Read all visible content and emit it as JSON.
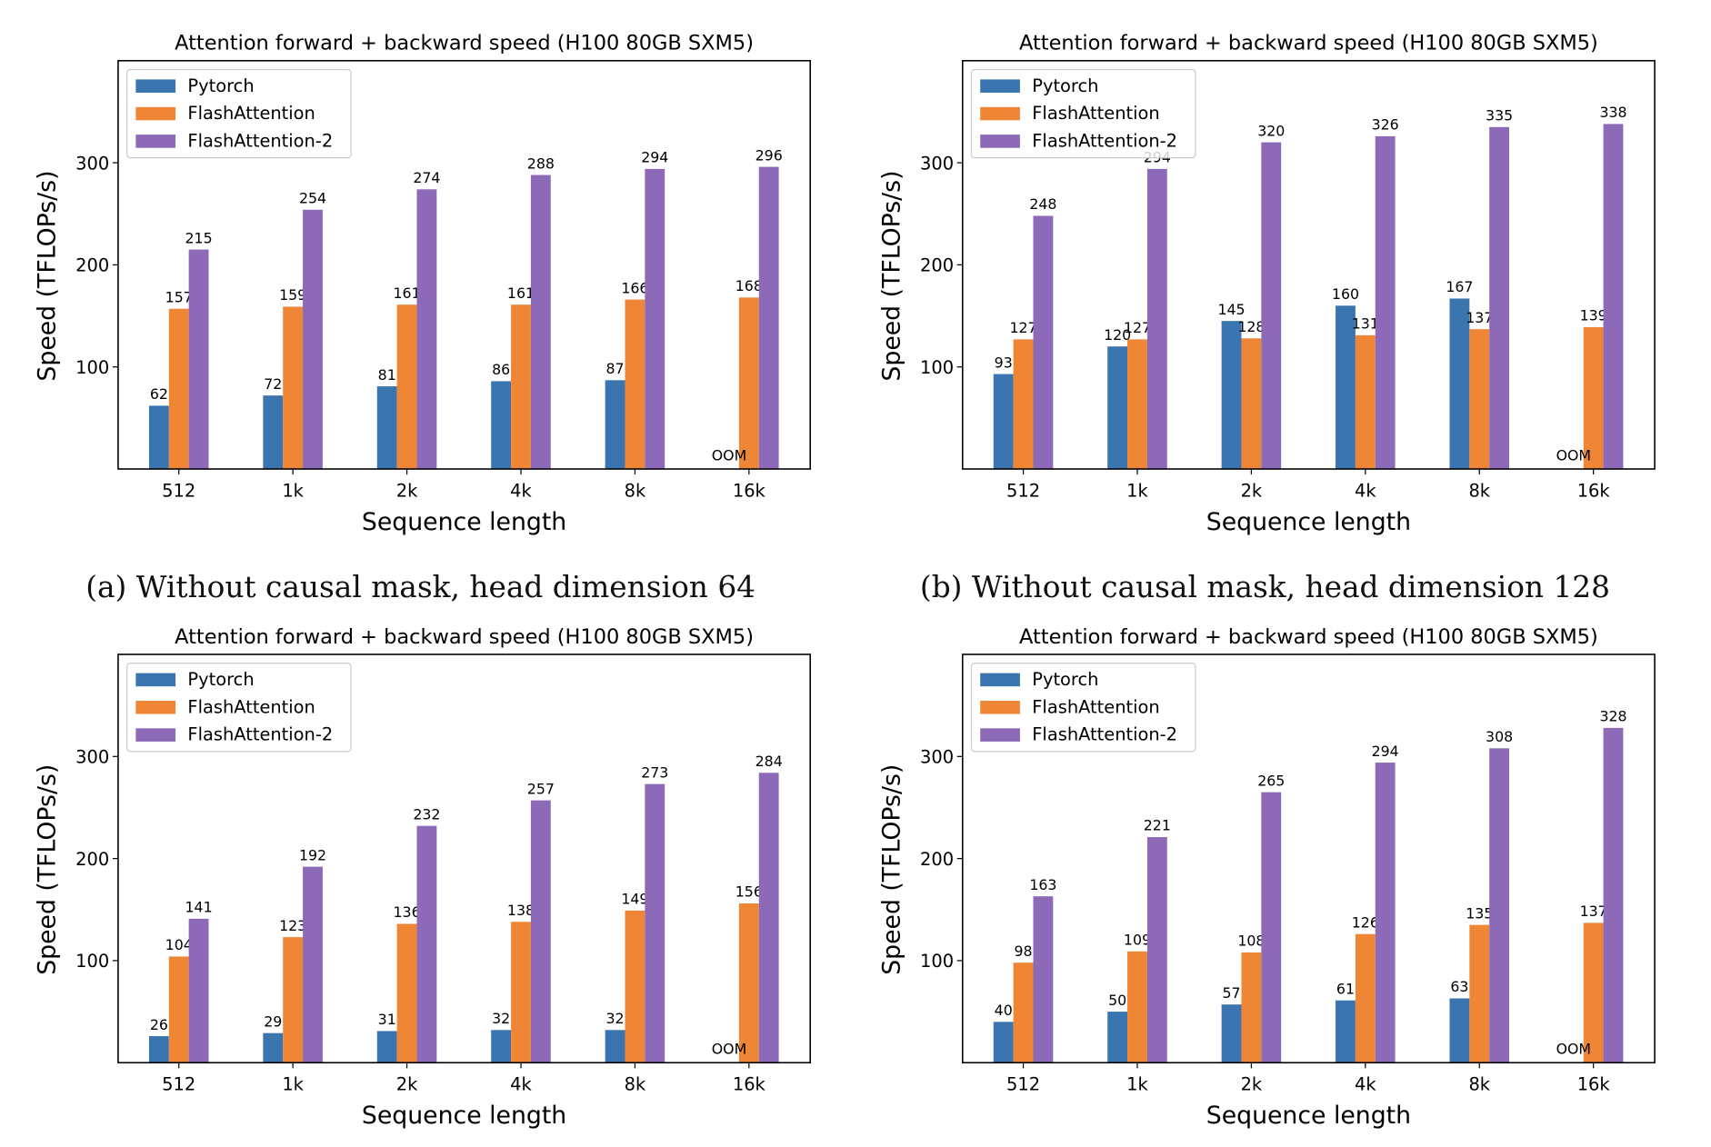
{
  "colors": {
    "Pytorch": "#3b75af",
    "FlashAttention": "#ef8636",
    "FlashAttention-2": "#8d6ab8"
  },
  "captions": [
    "(a) Without causal mask, head dimension 64",
    "(b) Without causal mask, head dimension 128"
  ],
  "chart_data": [
    {
      "type": "bar",
      "title": "Attention forward + backward speed (H100 80GB SXM5)",
      "xlabel": "Sequence length",
      "ylabel": "Speed (TFLOPs/s)",
      "ylim": [
        0,
        400
      ],
      "yticks": [
        100,
        200,
        300
      ],
      "legend": "top-left",
      "categories": [
        "512",
        "1k",
        "2k",
        "4k",
        "8k",
        "16k"
      ],
      "series": [
        {
          "name": "Pytorch",
          "values": [
            62,
            72,
            81,
            86,
            87,
            null
          ]
        },
        {
          "name": "FlashAttention",
          "values": [
            157,
            159,
            161,
            161,
            166,
            168
          ]
        },
        {
          "name": "FlashAttention-2",
          "values": [
            215,
            254,
            274,
            288,
            294,
            296
          ]
        }
      ],
      "annotations": [
        {
          "text": "OOM",
          "series": "Pytorch",
          "category": "16k"
        }
      ]
    },
    {
      "type": "bar",
      "title": "Attention forward + backward speed (H100 80GB SXM5)",
      "xlabel": "Sequence length",
      "ylabel": "Speed (TFLOPs/s)",
      "ylim": [
        0,
        400
      ],
      "yticks": [
        100,
        200,
        300
      ],
      "legend": "top-left",
      "categories": [
        "512",
        "1k",
        "2k",
        "4k",
        "8k",
        "16k"
      ],
      "series": [
        {
          "name": "Pytorch",
          "values": [
            93,
            120,
            145,
            160,
            167,
            null
          ]
        },
        {
          "name": "FlashAttention",
          "values": [
            127,
            127,
            128,
            131,
            137,
            139
          ]
        },
        {
          "name": "FlashAttention-2",
          "values": [
            248,
            294,
            320,
            326,
            335,
            338
          ]
        }
      ],
      "annotations": [
        {
          "text": "OOM",
          "series": "Pytorch",
          "category": "16k"
        }
      ]
    },
    {
      "type": "bar",
      "title": "Attention forward + backward speed (H100 80GB SXM5)",
      "xlabel": "Sequence length",
      "ylabel": "Speed (TFLOPs/s)",
      "ylim": [
        0,
        400
      ],
      "yticks": [
        100,
        200,
        300
      ],
      "legend": "top-left",
      "categories": [
        "512",
        "1k",
        "2k",
        "4k",
        "8k",
        "16k"
      ],
      "series": [
        {
          "name": "Pytorch",
          "values": [
            26,
            29,
            31,
            32,
            32,
            null
          ]
        },
        {
          "name": "FlashAttention",
          "values": [
            104,
            123,
            136,
            138,
            149,
            156
          ]
        },
        {
          "name": "FlashAttention-2",
          "values": [
            141,
            192,
            232,
            257,
            273,
            284
          ]
        }
      ],
      "annotations": [
        {
          "text": "OOM",
          "series": "Pytorch",
          "category": "16k"
        }
      ]
    },
    {
      "type": "bar",
      "title": "Attention forward + backward speed (H100 80GB SXM5)",
      "xlabel": "Sequence length",
      "ylabel": "Speed (TFLOPs/s)",
      "ylim": [
        0,
        400
      ],
      "yticks": [
        100,
        200,
        300
      ],
      "legend": "top-left",
      "categories": [
        "512",
        "1k",
        "2k",
        "4k",
        "8k",
        "16k"
      ],
      "series": [
        {
          "name": "Pytorch",
          "values": [
            40,
            50,
            57,
            61,
            63,
            null
          ]
        },
        {
          "name": "FlashAttention",
          "values": [
            98,
            109,
            108,
            126,
            135,
            137
          ]
        },
        {
          "name": "FlashAttention-2",
          "values": [
            163,
            221,
            265,
            294,
            308,
            328
          ]
        }
      ],
      "annotations": [
        {
          "text": "OOM",
          "series": "Pytorch",
          "category": "16k"
        }
      ]
    }
  ]
}
